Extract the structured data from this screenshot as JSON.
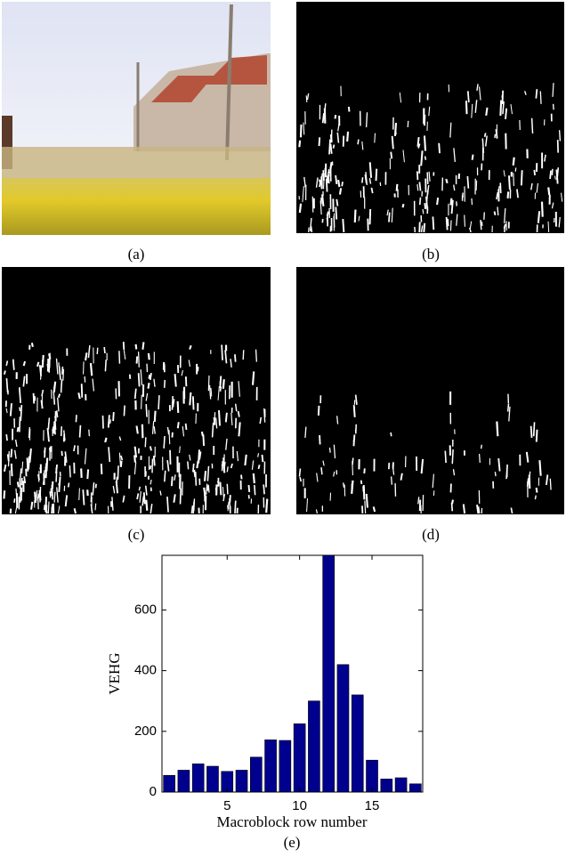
{
  "panels": [
    {
      "caption": "(a)"
    },
    {
      "caption": "(b)"
    },
    {
      "caption": "(c)"
    },
    {
      "caption": "(d)"
    }
  ],
  "chart_data": {
    "type": "bar",
    "caption": "(e)",
    "xlabel": "Macroblock row number",
    "ylabel": "VEHG",
    "x": [
      1,
      2,
      3,
      4,
      5,
      6,
      7,
      8,
      9,
      10,
      11,
      12,
      13,
      14,
      15,
      16,
      17,
      18
    ],
    "values": [
      55,
      72,
      93,
      85,
      68,
      72,
      115,
      172,
      170,
      225,
      300,
      780,
      420,
      320,
      105,
      43,
      47,
      27
    ],
    "color": "#00008f",
    "xlim": [
      0.5,
      18.5
    ],
    "xticks": [
      5,
      10,
      15
    ],
    "ylim": [
      0,
      780
    ],
    "yticks": [
      0,
      200,
      400,
      600
    ]
  }
}
